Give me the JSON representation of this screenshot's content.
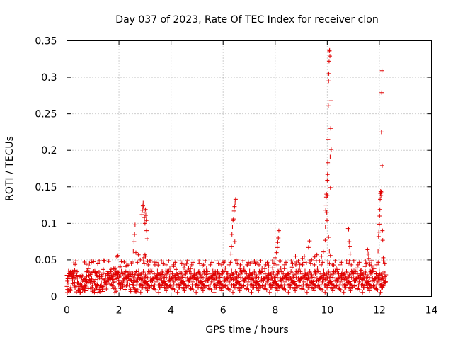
{
  "chart_data": {
    "type": "scatter",
    "title": "Day 037 of 2023, Rate Of TEC Index for receiver clon",
    "xlabel": "GPS time / hours",
    "ylabel": "ROTI / TECUs",
    "xlim": [
      0,
      14
    ],
    "ylim": [
      0,
      0.35
    ],
    "xticks": [
      0,
      2,
      4,
      6,
      8,
      10,
      12,
      14
    ],
    "xtick_labels": [
      "0",
      "2",
      "4",
      "6",
      "8",
      "10",
      "12",
      "14"
    ],
    "yticks": [
      0,
      0.05,
      0.1,
      0.15,
      0.2,
      0.25,
      0.3,
      0.35
    ],
    "ytick_labels": [
      "0",
      "0.05",
      "0.1",
      "0.15",
      "0.2",
      "0.25",
      "0.3",
      "0.35"
    ],
    "grid": true,
    "marker": "+",
    "color": "#e00000",
    "baseline": {
      "x_start": 0.0,
      "x_end": 12.25,
      "step": 0.03,
      "typical_range": [
        0.005,
        0.035
      ],
      "occasional_max": 0.05
    },
    "series": [
      {
        "name": "ROTI",
        "points": [
          [
            0.02,
            0.021
          ],
          [
            0.08,
            0.031
          ],
          [
            0.15,
            0.012
          ],
          [
            0.21,
            0.027
          ],
          [
            0.3,
            0.036
          ],
          [
            0.41,
            0.018
          ],
          [
            0.55,
            0.029
          ],
          [
            0.68,
            0.047
          ],
          [
            0.74,
            0.044
          ],
          [
            0.82,
            0.038
          ],
          [
            0.95,
            0.025
          ],
          [
            1.1,
            0.033
          ],
          [
            1.25,
            0.028
          ],
          [
            1.4,
            0.037
          ],
          [
            1.55,
            0.031
          ],
          [
            1.7,
            0.029
          ],
          [
            1.8,
            0.038
          ],
          [
            1.92,
            0.054
          ],
          [
            1.96,
            0.056
          ],
          [
            2.05,
            0.041
          ],
          [
            2.2,
            0.047
          ],
          [
            2.35,
            0.043
          ],
          [
            2.55,
            0.062
          ],
          [
            2.58,
            0.075
          ],
          [
            2.6,
            0.085
          ],
          [
            2.62,
            0.098
          ],
          [
            2.65,
            0.06
          ],
          [
            2.75,
            0.057
          ],
          [
            2.82,
            0.05
          ],
          [
            2.88,
            0.112
          ],
          [
            2.9,
            0.118
          ],
          [
            2.92,
            0.124
          ],
          [
            2.93,
            0.128
          ],
          [
            2.95,
            0.121
          ],
          [
            2.97,
            0.115
          ],
          [
            2.98,
            0.108
          ],
          [
            3.0,
            0.1
          ],
          [
            3.02,
            0.119
          ],
          [
            3.03,
            0.111
          ],
          [
            3.05,
            0.104
          ],
          [
            3.06,
            0.09
          ],
          [
            3.08,
            0.079
          ],
          [
            3.0,
            0.057
          ],
          [
            3.02,
            0.055
          ],
          [
            2.95,
            0.053
          ],
          [
            3.1,
            0.048
          ],
          [
            3.2,
            0.049
          ],
          [
            3.35,
            0.047
          ],
          [
            3.5,
            0.043
          ],
          [
            3.65,
            0.03
          ],
          [
            3.8,
            0.035
          ],
          [
            3.95,
            0.028
          ],
          [
            4.1,
            0.041
          ],
          [
            4.2,
            0.037
          ],
          [
            4.35,
            0.031
          ],
          [
            4.5,
            0.039
          ],
          [
            4.6,
            0.045
          ],
          [
            4.75,
            0.038
          ],
          [
            4.9,
            0.026
          ],
          [
            5.05,
            0.033
          ],
          [
            5.2,
            0.042
          ],
          [
            5.35,
            0.03
          ],
          [
            5.55,
            0.026
          ],
          [
            5.7,
            0.034
          ],
          [
            5.85,
            0.031
          ],
          [
            6.0,
            0.046
          ],
          [
            6.05,
            0.047
          ],
          [
            6.15,
            0.032
          ],
          [
            6.3,
            0.058
          ],
          [
            6.32,
            0.068
          ],
          [
            6.34,
            0.085
          ],
          [
            6.36,
            0.095
          ],
          [
            6.38,
            0.104
          ],
          [
            6.4,
            0.106
          ],
          [
            6.42,
            0.117
          ],
          [
            6.44,
            0.123
          ],
          [
            6.46,
            0.128
          ],
          [
            6.48,
            0.133
          ],
          [
            6.45,
            0.075
          ],
          [
            6.5,
            0.05
          ],
          [
            6.65,
            0.038
          ],
          [
            6.8,
            0.036
          ],
          [
            6.95,
            0.043
          ],
          [
            7.05,
            0.045
          ],
          [
            7.15,
            0.047
          ],
          [
            7.3,
            0.046
          ],
          [
            7.45,
            0.033
          ],
          [
            7.6,
            0.038
          ],
          [
            7.75,
            0.042
          ],
          [
            7.9,
            0.039
          ],
          [
            8.0,
            0.053
          ],
          [
            8.05,
            0.06
          ],
          [
            8.08,
            0.067
          ],
          [
            8.1,
            0.074
          ],
          [
            8.12,
            0.08
          ],
          [
            8.14,
            0.09
          ],
          [
            8.2,
            0.048
          ],
          [
            8.35,
            0.038
          ],
          [
            8.5,
            0.031
          ],
          [
            8.65,
            0.04
          ],
          [
            8.78,
            0.055
          ],
          [
            8.82,
            0.047
          ],
          [
            8.95,
            0.044
          ],
          [
            9.05,
            0.052
          ],
          [
            9.12,
            0.055
          ],
          [
            9.2,
            0.046
          ],
          [
            9.28,
            0.067
          ],
          [
            9.32,
            0.076
          ],
          [
            9.4,
            0.05
          ],
          [
            9.52,
            0.054
          ],
          [
            9.6,
            0.057
          ],
          [
            9.7,
            0.049
          ],
          [
            9.78,
            0.055
          ],
          [
            9.85,
            0.061
          ],
          [
            9.92,
            0.077
          ],
          [
            9.93,
            0.095
          ],
          [
            9.94,
            0.118
          ],
          [
            9.95,
            0.125
          ],
          [
            9.96,
            0.136
          ],
          [
            9.97,
            0.14
          ],
          [
            9.98,
            0.115
          ],
          [
            9.99,
            0.104
          ],
          [
            10.0,
            0.138
          ],
          [
            10.0,
            0.159
          ],
          [
            10.01,
            0.167
          ],
          [
            10.02,
            0.183
          ],
          [
            10.03,
            0.215
          ],
          [
            10.04,
            0.261
          ],
          [
            10.05,
            0.295
          ],
          [
            10.06,
            0.305
          ],
          [
            10.07,
            0.322
          ],
          [
            10.08,
            0.336
          ],
          [
            10.09,
            0.337
          ],
          [
            10.1,
            0.329
          ],
          [
            10.11,
            0.191
          ],
          [
            10.12,
            0.149
          ],
          [
            10.13,
            0.23
          ],
          [
            10.14,
            0.268
          ],
          [
            10.15,
            0.201
          ],
          [
            10.05,
            0.081
          ],
          [
            10.08,
            0.062
          ],
          [
            10.12,
            0.056
          ],
          [
            10.25,
            0.043
          ],
          [
            10.4,
            0.037
          ],
          [
            10.55,
            0.031
          ],
          [
            10.7,
            0.028
          ],
          [
            10.8,
            0.093
          ],
          [
            10.82,
            0.092
          ],
          [
            10.84,
            0.075
          ],
          [
            10.86,
            0.068
          ],
          [
            10.88,
            0.058
          ],
          [
            10.85,
            0.049
          ],
          [
            11.0,
            0.031
          ],
          [
            11.15,
            0.039
          ],
          [
            11.3,
            0.036
          ],
          [
            11.45,
            0.041
          ],
          [
            11.55,
            0.064
          ],
          [
            11.57,
            0.058
          ],
          [
            11.59,
            0.052
          ],
          [
            11.62,
            0.046
          ],
          [
            11.7,
            0.042
          ],
          [
            11.8,
            0.038
          ],
          [
            11.88,
            0.031
          ],
          [
            11.95,
            0.062
          ],
          [
            11.97,
            0.082
          ],
          [
            11.98,
            0.088
          ],
          [
            12.0,
            0.099
          ],
          [
            12.01,
            0.11
          ],
          [
            12.02,
            0.119
          ],
          [
            12.03,
            0.133
          ],
          [
            12.04,
            0.141
          ],
          [
            12.05,
            0.144
          ],
          [
            12.06,
            0.138
          ],
          [
            12.07,
            0.143
          ],
          [
            12.08,
            0.225
          ],
          [
            12.09,
            0.279
          ],
          [
            12.1,
            0.309
          ],
          [
            12.11,
            0.179
          ],
          [
            12.12,
            0.09
          ],
          [
            12.13,
            0.077
          ],
          [
            12.15,
            0.053
          ],
          [
            12.18,
            0.032
          ],
          [
            12.22,
            0.027
          ]
        ]
      }
    ]
  }
}
